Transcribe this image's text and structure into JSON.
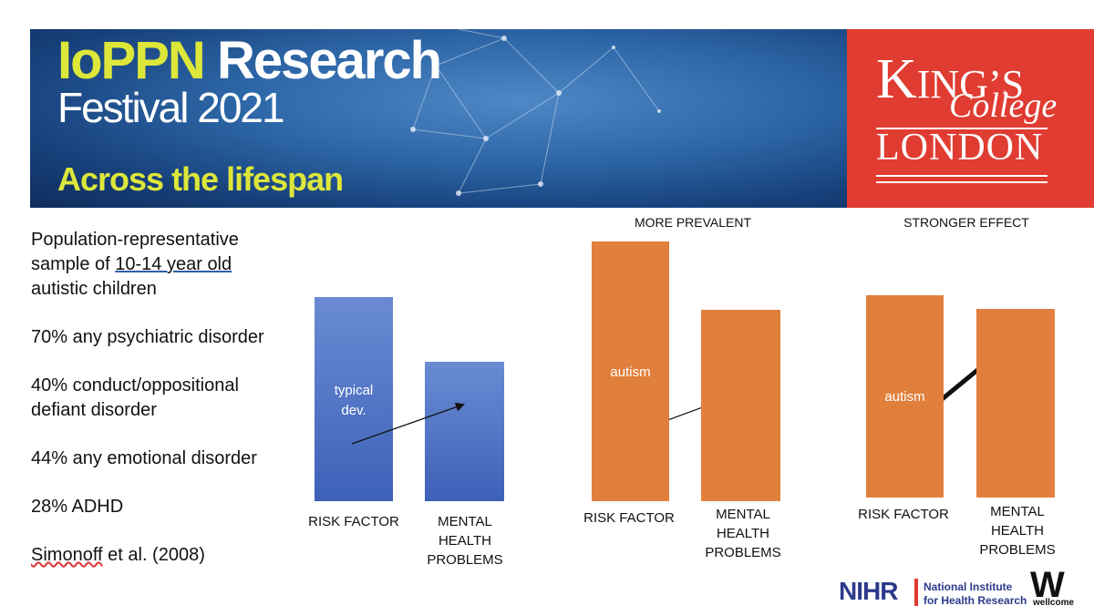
{
  "banner": {
    "title_part1": "IoPPN",
    "title_part2": "Research",
    "subtitle": "Festival 2021",
    "tagline": "Across the lifespan",
    "colors": {
      "yellow": "#dde73a",
      "blue": "#2d67a8"
    }
  },
  "kcl_logo": {
    "line1_big": "K",
    "line1_rest": "ING’S",
    "line2": "College",
    "line3": "LONDON",
    "color": "#e03c31"
  },
  "left_text": {
    "line1": "Population-representative",
    "line2_pre": "sample of ",
    "line2_link": "10-14 year old",
    "line3": "autistic children",
    "stat1": "70% any psychiatric disorder",
    "stat2_a": "40% conduct/oppositional",
    "stat2_b": "defiant disorder",
    "stat3": "44% any emotional disorder",
    "stat4": "28% ADHD",
    "citation_name": "Simonoff",
    "citation_rest": " et al. (2008)"
  },
  "panels": {
    "p1": {
      "caption": "",
      "inner_label_a": "typical",
      "inner_label_b": "dev.",
      "x1": "RISK FACTOR",
      "x2_a": "MENTAL",
      "x2_b": "HEALTH",
      "x2_c": "PROBLEMS",
      "color": "#4a6fc2"
    },
    "p2": {
      "caption": "MORE PREVALENT",
      "inner_label": "autism",
      "x1": "RISK FACTOR",
      "x2_a": "MENTAL",
      "x2_b": "HEALTH",
      "x2_c": "PROBLEMS",
      "color": "#e1803d"
    },
    "p3": {
      "caption": "STRONGER EFFECT",
      "inner_label": "autism",
      "x1": "RISK FACTOR",
      "x2_a": "MENTAL",
      "x2_b": "HEALTH",
      "x2_c": "PROBLEMS",
      "color": "#e1803d"
    }
  },
  "footer": {
    "nihr": "NIHR",
    "nihr_line1": "National Institute",
    "nihr_line2": "for Health Research",
    "wellcome_mark": "W",
    "wellcome": "wellcome"
  }
}
